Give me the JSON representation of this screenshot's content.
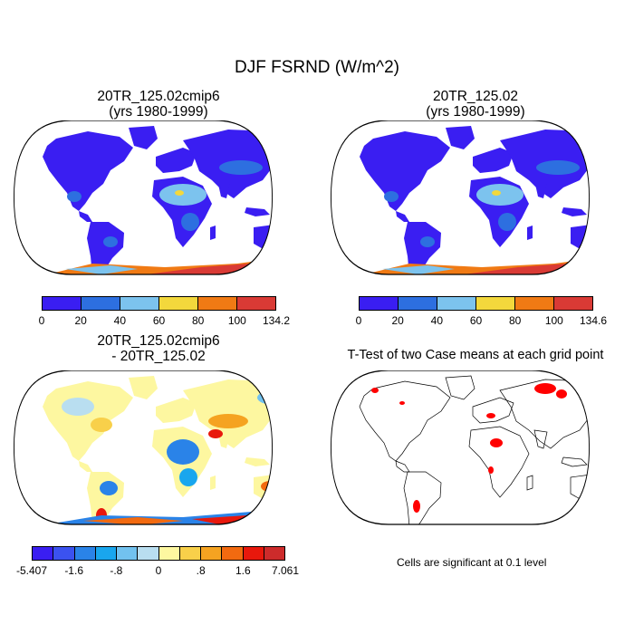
{
  "title": "DJF FSRND (W/m^2)",
  "panels": {
    "top_left": {
      "title_line1": "20TR_125.02cmip6",
      "title_line2": "(yrs 1980-1999)"
    },
    "top_right": {
      "title_line1": "20TR_125.02",
      "title_line2": "(yrs 1980-1999)"
    },
    "bottom_left": {
      "title_line1": "20TR_125.02cmip6",
      "title_line2": "- 20TR_125.02"
    },
    "bottom_right": {
      "title_line1": "T-Test of two Case means at each grid point",
      "note": "Cells are significant at 0.1 level"
    }
  },
  "colorbars": {
    "top_left": {
      "colors": [
        "#3a1ef2",
        "#2d6fe0",
        "#7cc3ee",
        "#f3d83c",
        "#f07a14",
        "#d93a35"
      ],
      "labels": [
        "0",
        "20",
        "40",
        "60",
        "80",
        "100",
        "134.2"
      ]
    },
    "top_right": {
      "colors": [
        "#3a1ef2",
        "#2d6fe0",
        "#7cc3ee",
        "#f3d83c",
        "#f07a14",
        "#d93a35"
      ],
      "labels": [
        "0",
        "20",
        "40",
        "60",
        "80",
        "100",
        "134.6"
      ]
    },
    "bottom_left": {
      "colors": [
        "#3a1ef2",
        "#3b52f0",
        "#2a83e8",
        "#19a6ee",
        "#72c2ef",
        "#b9def0",
        "#fdf7a0",
        "#f8d04a",
        "#f5a321",
        "#f26a10",
        "#e8180c",
        "#cd2b2b"
      ],
      "labels": [
        "-5.407",
        "-1.6",
        "-.8",
        "0",
        ".8",
        "1.6",
        "7.061"
      ]
    }
  },
  "map_colors": {
    "land_mean": "#3a1ef2",
    "land_mid": "#2d6fe0",
    "land_high": "#7cc3ee",
    "land_yellow": "#f3d83c",
    "antarctic_orange": "#f07a14",
    "antarctic_red": "#d93a35",
    "diff_blue": "#2a83e8",
    "diff_light": "#b9def0",
    "diff_yellow": "#f8d04a",
    "diff_orange": "#f26a10",
    "diff_red": "#cd2b2b",
    "signif": "#ff0000"
  }
}
